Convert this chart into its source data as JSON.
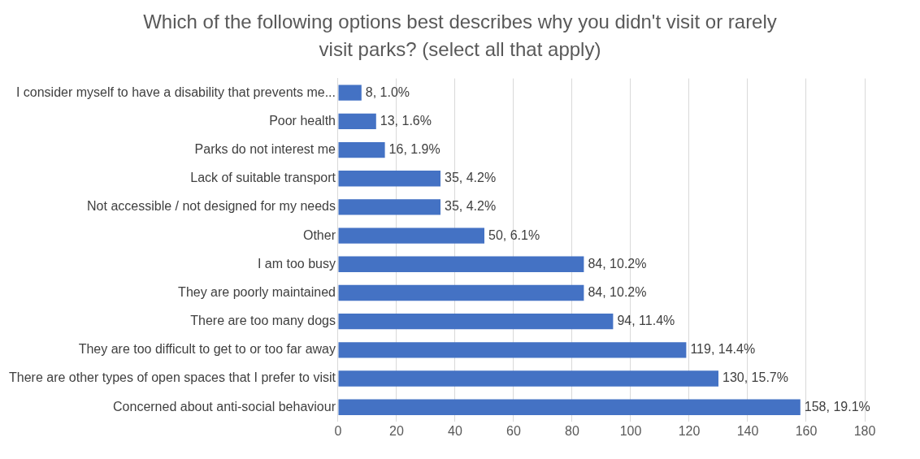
{
  "chart_data": {
    "type": "bar",
    "orientation": "horizontal",
    "title": "Which of the following options best describes why you didn't visit or rarely visit parks? (select all that apply)",
    "categories": [
      "I consider myself to have a disability that prevents me...",
      "Poor health",
      "Parks do not interest me",
      "Lack of suitable transport",
      "Not accessible / not designed for my needs",
      "Other",
      "I am too busy",
      "They are poorly maintained",
      "There are too many dogs",
      "They are too difficult to get to or too far away",
      "There are other types of open spaces that I prefer to visit",
      "Concerned about anti-social behaviour"
    ],
    "values": [
      8,
      13,
      16,
      35,
      35,
      50,
      84,
      84,
      94,
      119,
      130,
      158
    ],
    "value_labels": [
      "8, 1.0%",
      "13, 1.6%",
      "16, 1.9%",
      "35, 4.2%",
      "35, 4.2%",
      "50, 6.1%",
      "84, 10.2%",
      "84, 10.2%",
      "94, 11.4%",
      "119, 14.4%",
      "130, 15.7%",
      "158, 19.1%"
    ],
    "color": "#4472c4",
    "xlim": [
      0,
      180
    ],
    "xticks": [
      0,
      20,
      40,
      60,
      80,
      100,
      120,
      140,
      160,
      180
    ],
    "grid": "x",
    "legend": false
  }
}
